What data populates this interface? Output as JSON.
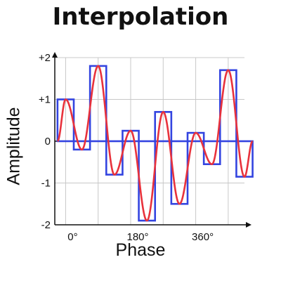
{
  "title": "Interpolation",
  "colors": {
    "curve": "#e8323c",
    "samples": "#3344e0",
    "grid": "#c8c8c8",
    "axis": "#111111"
  },
  "chart_data": {
    "type": "line",
    "xlabel": "Phase",
    "ylabel": "Amplitude",
    "xticks": [
      {
        "label": "0°",
        "value": 0
      },
      {
        "label": "180°",
        "value": 180
      },
      {
        "label": "360°",
        "value": 360
      }
    ],
    "yticks": [
      {
        "label": "+2",
        "value": 2
      },
      {
        "label": "+1",
        "value": 1
      },
      {
        "label": "0",
        "value": 0
      },
      {
        "label": "-1",
        "value": -1
      },
      {
        "label": "-2",
        "value": -2
      }
    ],
    "ylim": [
      -2,
      2
    ],
    "xlim": [
      -30,
      495
    ],
    "grid": true,
    "zero_line": "dashed",
    "sample_width_deg": 45,
    "samples": [
      {
        "phase": 0,
        "value": 1.0
      },
      {
        "phase": 45,
        "value": -0.2
      },
      {
        "phase": 90,
        "value": 1.8
      },
      {
        "phase": 135,
        "value": -0.8
      },
      {
        "phase": 180,
        "value": 0.25
      },
      {
        "phase": 225,
        "value": -1.9
      },
      {
        "phase": 270,
        "value": 0.7
      },
      {
        "phase": 315,
        "value": -1.5
      },
      {
        "phase": 360,
        "value": 0.2
      },
      {
        "phase": 405,
        "value": -0.55
      },
      {
        "phase": 450,
        "value": 1.7
      },
      {
        "phase": 495,
        "value": -0.85
      }
    ]
  }
}
